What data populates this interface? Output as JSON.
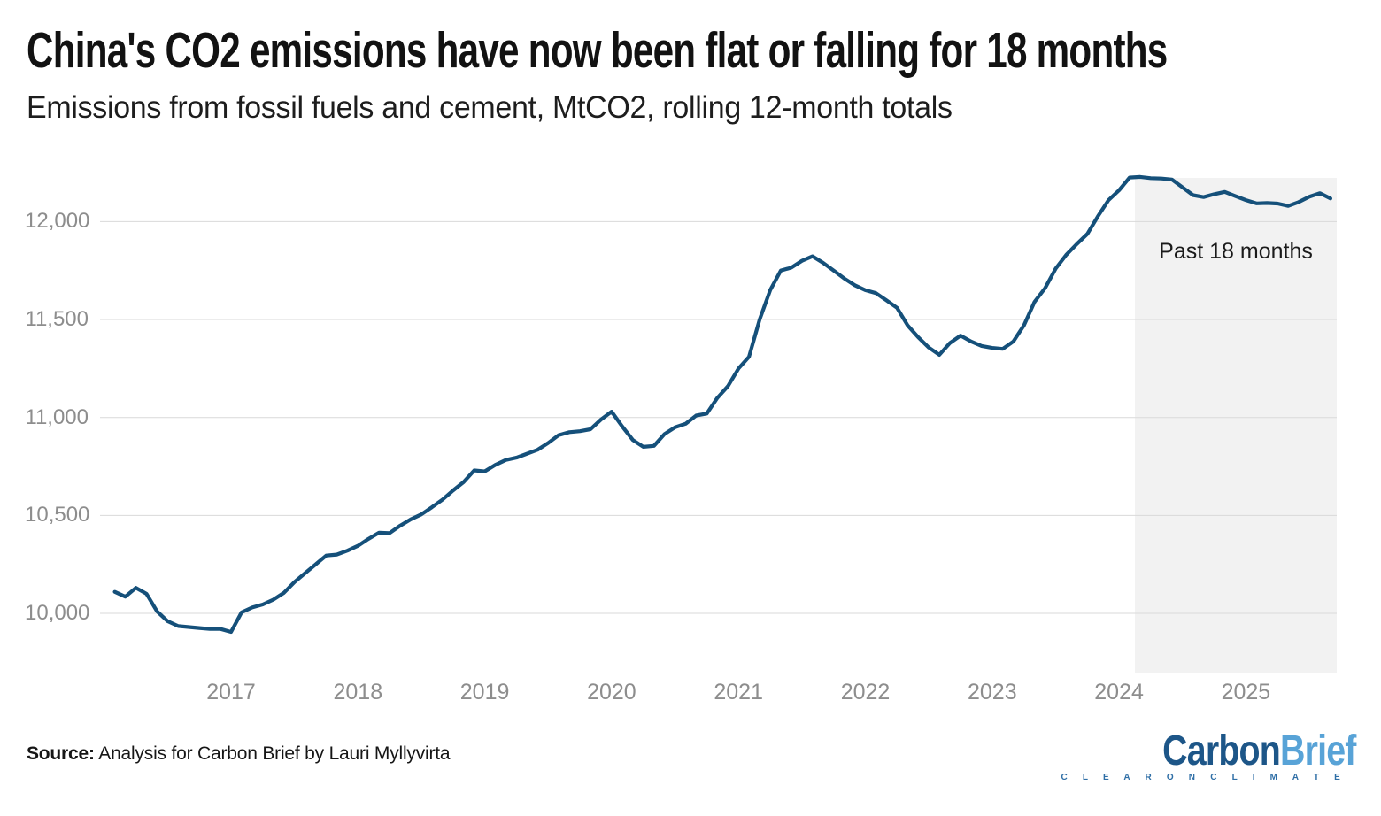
{
  "header": {
    "title": "China's CO2 emissions have now been flat or falling for 18 months",
    "subtitle": "Emissions from fossil fuels and cement, MtCO2, rolling 12-month totals"
  },
  "chart_data": {
    "type": "line",
    "title": "China's CO2 emissions have now been flat or falling for 18 months",
    "subtitle": "Emissions from fossil fuels and cement, MtCO2, rolling 12-month totals",
    "unit": "MtCO2",
    "x_start": "2016-02",
    "frequency": "monthly",
    "x_ticks": [
      "2017",
      "2018",
      "2019",
      "2020",
      "2021",
      "2022",
      "2023",
      "2024",
      "2025"
    ],
    "y_ticks": [
      10000,
      10500,
      11000,
      11500,
      12000
    ],
    "y_tick_labels": [
      "10,000",
      "10,500",
      "11,000",
      "11,500",
      "12,000"
    ],
    "ylim": [
      9850,
      12300
    ],
    "grid": "horizontal",
    "legend": "none",
    "annotation": {
      "label": "Past 18 months",
      "region_start": "2024-03",
      "region_end": "2025-09"
    },
    "series": [
      {
        "name": "Emissions from fossil fuels and cement, rolling 12-month total (MtCO2)",
        "values": [
          10110,
          10085,
          10130,
          10100,
          10010,
          9960,
          9935,
          9930,
          9925,
          9920,
          9920,
          9905,
          10005,
          10030,
          10045,
          10070,
          10105,
          10160,
          10205,
          10250,
          10295,
          10300,
          10320,
          10345,
          10380,
          10412,
          10410,
          10448,
          10480,
          10505,
          10542,
          10580,
          10627,
          10670,
          10730,
          10725,
          10758,
          10783,
          10795,
          10815,
          10835,
          10870,
          10910,
          10925,
          10930,
          10940,
          10990,
          11030,
          10955,
          10885,
          10850,
          10855,
          10915,
          10950,
          10968,
          11010,
          11020,
          11100,
          11160,
          11250,
          11310,
          11500,
          11650,
          11750,
          11765,
          11800,
          11823,
          11790,
          11750,
          11710,
          11675,
          11650,
          11635,
          11598,
          11560,
          11470,
          11410,
          11357,
          11320,
          11380,
          11418,
          11388,
          11365,
          11355,
          11350,
          11388,
          11470,
          11590,
          11660,
          11760,
          11830,
          11885,
          11937,
          12027,
          12110,
          12160,
          12225,
          12228,
          12222,
          12220,
          12215,
          12175,
          12135,
          12125,
          12140,
          12152,
          12130,
          12110,
          12093,
          12095,
          12092,
          12080,
          12100,
          12127,
          12145,
          12118
        ]
      }
    ]
  },
  "colors": {
    "line": "#15507a",
    "shade": "#f2f2f2",
    "grid": "#d9d9d9",
    "axis_text": "#8d8d8d",
    "annotation_text": "#1b1b1b"
  },
  "footer": {
    "source_label": "Source:",
    "source_text": " Analysis for Carbon Brief by Lauri Myllyvirta",
    "logo": {
      "part1": "Carbon",
      "part2": "Brief",
      "tagline": "C L E A R   O N   C L I M A T E",
      "color1": "#1d5688",
      "color2": "#58a3d7",
      "tagline_color": "#2e6ea6"
    }
  }
}
